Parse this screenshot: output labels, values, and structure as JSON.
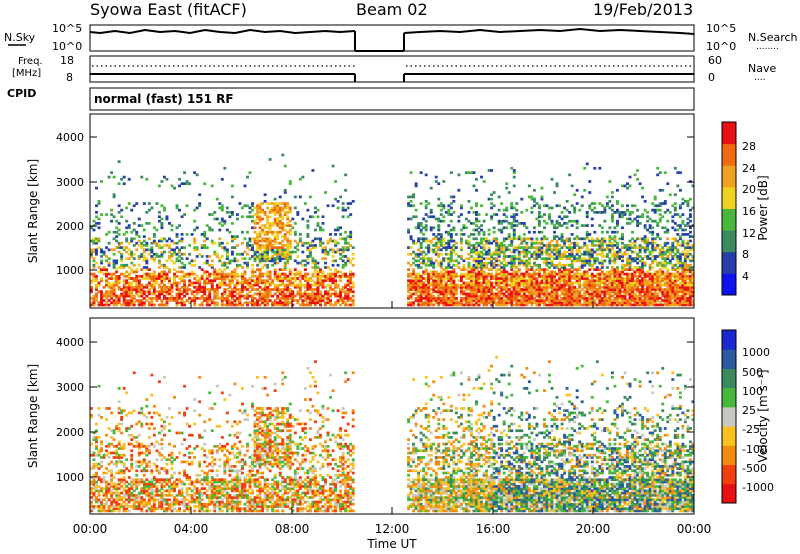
{
  "header": {
    "title": "Syowa East (fitACF)",
    "beam": "Beam 02",
    "date": "19/Feb/2013"
  },
  "sky_panel": {
    "left_label": "N.Sky",
    "right_label": "N.Search",
    "right_marker": "........",
    "left_ticks": [
      "10^5",
      "10^0"
    ],
    "right_ticks": [
      "10^5",
      "10^0"
    ]
  },
  "freq_panel": {
    "left_label_1": "Freq.",
    "left_label_2": "[MHz]",
    "right_label": "Nave",
    "right_marker": "....",
    "left_ticks": [
      "18",
      "8"
    ],
    "right_ticks": [
      "60",
      "0"
    ]
  },
  "cpid": {
    "label": "CPID",
    "mode": "normal (fast) 151 RF"
  },
  "x_axis": {
    "label": "Time UT",
    "ticks": [
      "00:00",
      "04:00",
      "08:00",
      "12:00",
      "16:00",
      "20:00",
      "00:00"
    ]
  },
  "colors": {
    "power_scale": [
      "#0b14f0",
      "#2540a8",
      "#3a8a60",
      "#48b83c",
      "#f0d020",
      "#f0a020",
      "#f06a10",
      "#e81010"
    ],
    "velocity_scale": [
      "#e81010",
      "#f04010",
      "#f08a10",
      "#f8c020",
      "#c8c8c0",
      "#48b83c",
      "#3a8a60",
      "#2a5aa0",
      "#1a2ad0"
    ]
  },
  "chart_data": [
    {
      "type": "heatmap",
      "name": "power",
      "ylabel": "Slant Range [km]",
      "xlabel": "Time UT",
      "y_ticks": [
        "1000",
        "2000",
        "3000",
        "4000"
      ],
      "ylim": [
        200,
        4600
      ],
      "xlim": [
        0,
        24
      ],
      "data_gap_hours": [
        10.5,
        12.6
      ],
      "colorbar": {
        "label": "Power [dB]",
        "ticks": [
          "4",
          "8",
          "12",
          "16",
          "20",
          "24",
          "28"
        ]
      }
    },
    {
      "type": "heatmap",
      "name": "velocity",
      "ylabel": "Slant Range [km]",
      "xlabel": "Time UT",
      "y_ticks": [
        "1000",
        "2000",
        "3000",
        "4000"
      ],
      "ylim": [
        200,
        4600
      ],
      "xlim": [
        0,
        24
      ],
      "data_gap_hours": [
        10.5,
        12.6
      ],
      "colorbar": {
        "label": "Velocity [m s⁻¹]",
        "ticks": [
          "1000",
          "500",
          "100",
          "25",
          "-25",
          "-100",
          "-500",
          "-1000"
        ]
      }
    }
  ]
}
